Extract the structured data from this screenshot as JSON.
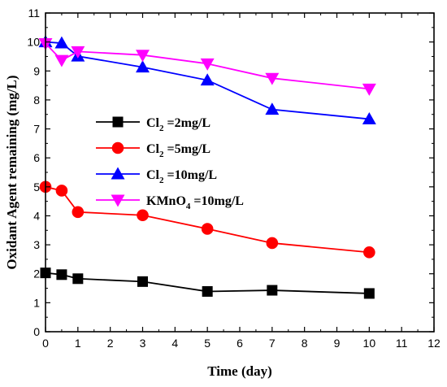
{
  "chart_data": {
    "type": "line",
    "xlabel": "Time (day)",
    "ylabel": "Oxidant Agent remaining (mg/L)",
    "xlim": [
      0,
      12
    ],
    "ylim": [
      0,
      11
    ],
    "xticks": [
      0,
      1,
      2,
      3,
      4,
      5,
      6,
      7,
      8,
      9,
      10,
      11,
      12
    ],
    "yticks": [
      0,
      1,
      2,
      3,
      4,
      5,
      6,
      7,
      8,
      9,
      10,
      11
    ],
    "grid": false,
    "legend_position": "center-left",
    "series": [
      {
        "name": "Cl2 =2mg/L",
        "legend_base": "Cl",
        "legend_sub": "2",
        "legend_rest": " =2mg/L",
        "color": "#000000",
        "marker": "square",
        "x": [
          0,
          0.5,
          1,
          3,
          5,
          7,
          10
        ],
        "y": [
          2.03,
          1.97,
          1.83,
          1.73,
          1.39,
          1.43,
          1.32
        ]
      },
      {
        "name": "Cl2 =5mg/L",
        "legend_base": "Cl",
        "legend_sub": "2",
        "legend_rest": " =5mg/L",
        "color": "#ff0000",
        "marker": "circle",
        "x": [
          0,
          0.5,
          1,
          3,
          5,
          7,
          10
        ],
        "y": [
          5.0,
          4.87,
          4.13,
          4.02,
          3.55,
          3.06,
          2.74
        ]
      },
      {
        "name": "Cl2 =10mg/L",
        "legend_base": "Cl",
        "legend_sub": "2",
        "legend_rest": " =10mg/L",
        "color": "#0000ff",
        "marker": "triangle-up",
        "x": [
          0,
          0.5,
          1,
          3,
          5,
          7,
          10
        ],
        "y": [
          10.0,
          9.96,
          9.51,
          9.13,
          8.68,
          7.67,
          7.34
        ]
      },
      {
        "name": "KMnO4 =10mg/L",
        "legend_base": "KMnO",
        "legend_sub": "4",
        "legend_rest": " =10mg/L",
        "color": "#ff00ff",
        "marker": "triangle-down",
        "x": [
          0,
          0.5,
          1,
          3,
          5,
          7,
          10
        ],
        "y": [
          9.95,
          9.37,
          9.67,
          9.55,
          9.25,
          8.75,
          8.38
        ]
      }
    ]
  }
}
